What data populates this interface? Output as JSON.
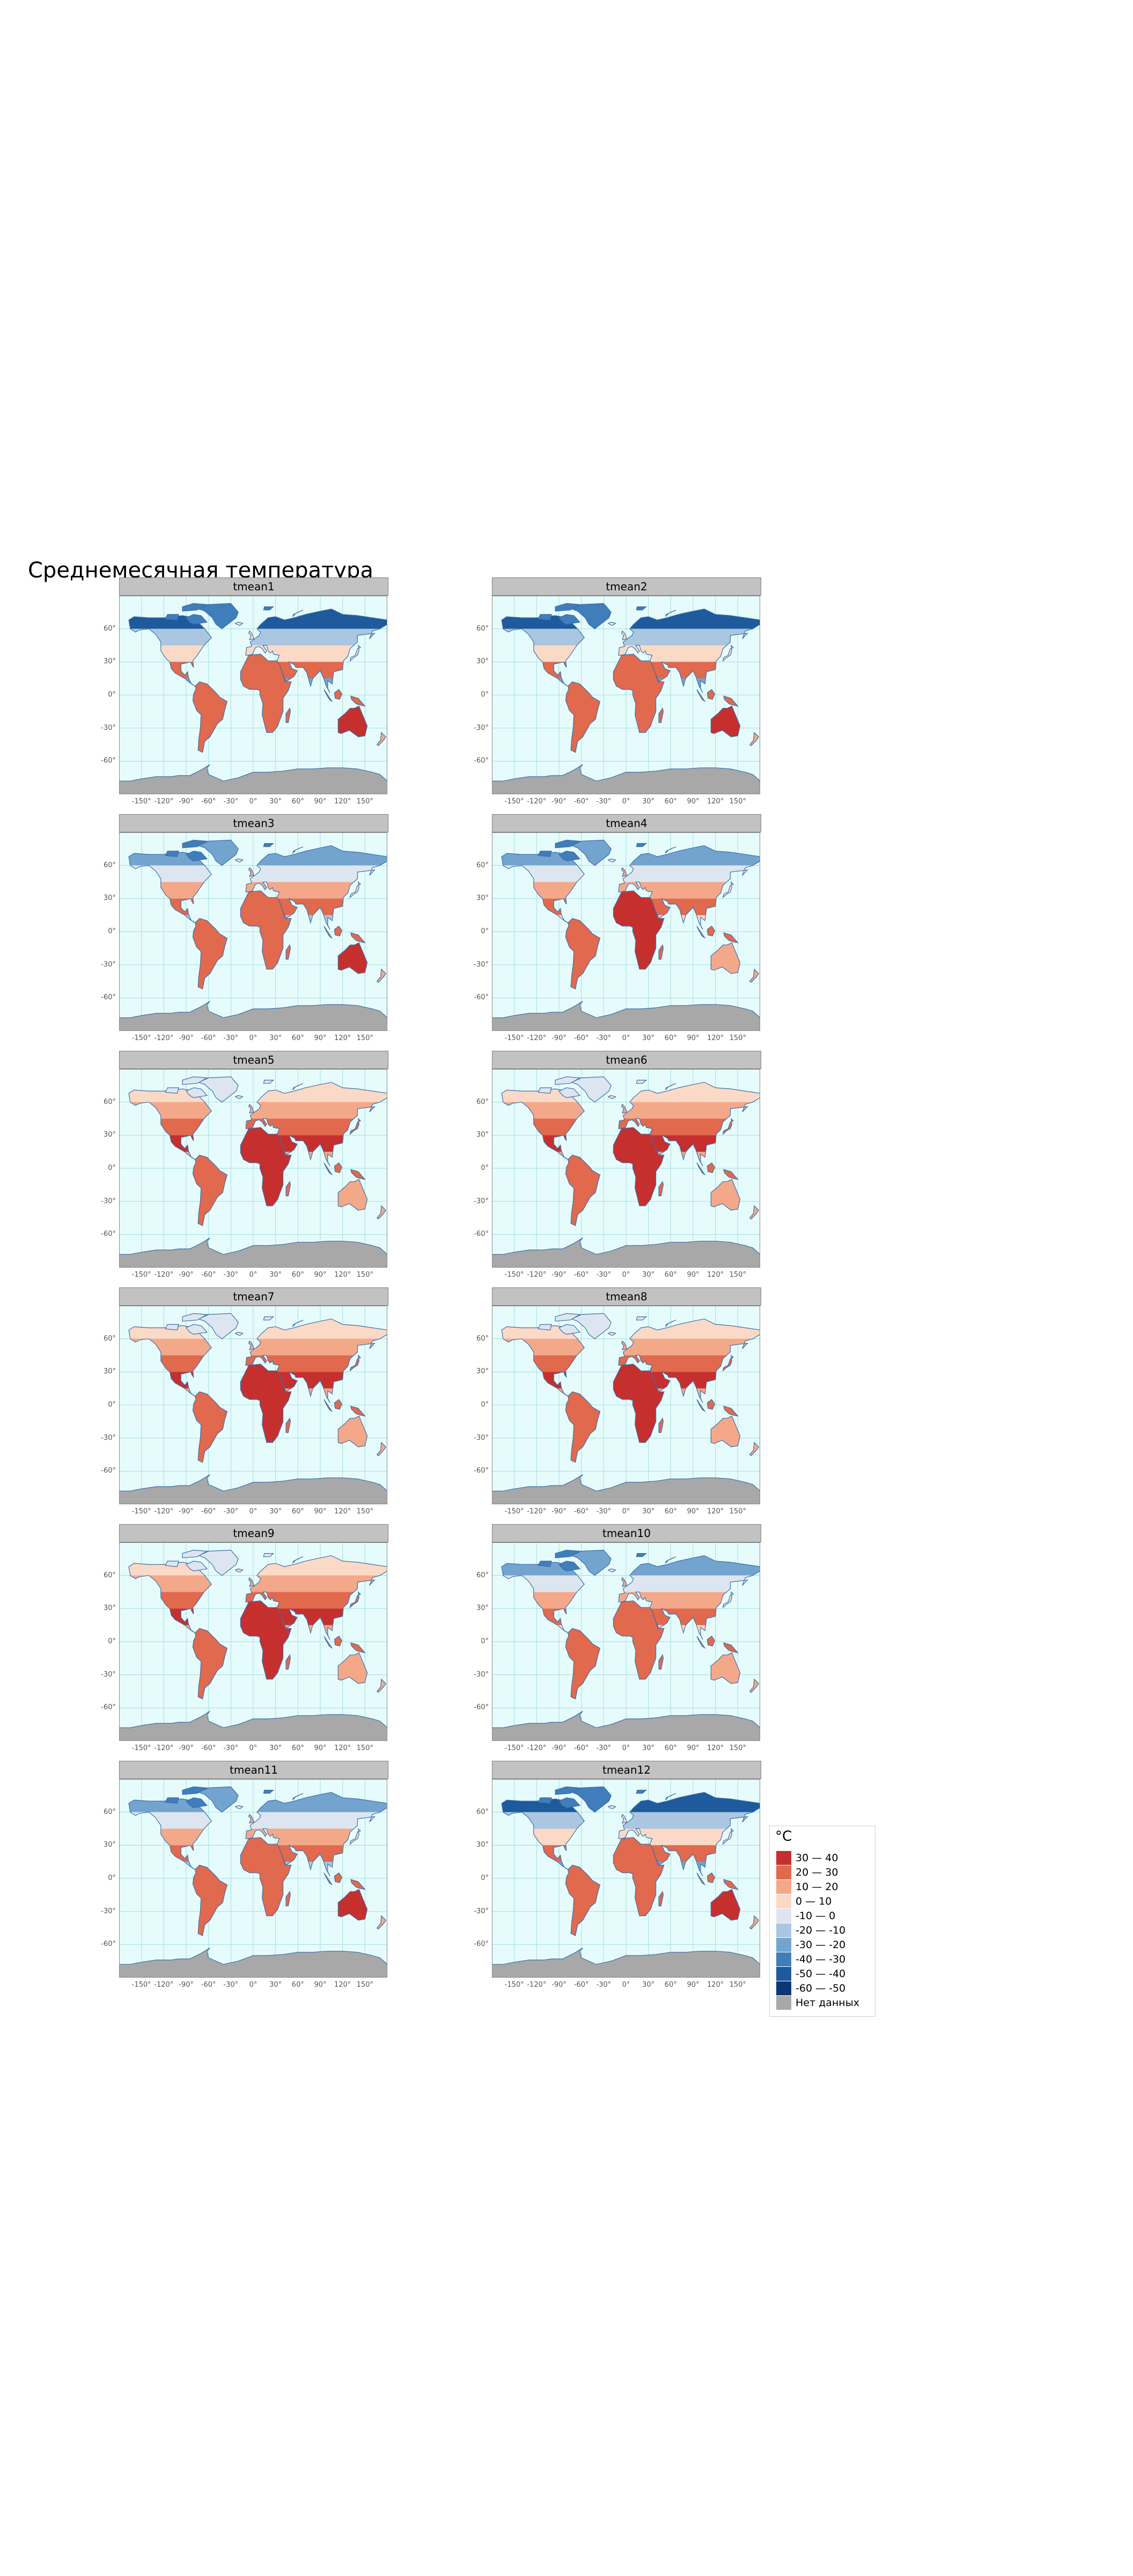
{
  "title": "Среднемесячная температура",
  "panels": [
    {
      "name": "tmean1",
      "month": 1
    },
    {
      "name": "tmean2",
      "month": 2
    },
    {
      "name": "tmean3",
      "month": 3
    },
    {
      "name": "tmean4",
      "month": 4
    },
    {
      "name": "tmean5",
      "month": 5
    },
    {
      "name": "tmean6",
      "month": 6
    },
    {
      "name": "tmean7",
      "month": 7
    },
    {
      "name": "tmean8",
      "month": 8
    },
    {
      "name": "tmean9",
      "month": 9
    },
    {
      "name": "tmean10",
      "month": 10
    },
    {
      "name": "tmean11",
      "month": 11
    },
    {
      "name": "tmean12",
      "month": 12
    }
  ],
  "latitude_labels": [
    "60°",
    "30°",
    "0°",
    "-30°",
    "-60°"
  ],
  "latitude_values": [
    60,
    30,
    0,
    -30,
    -60
  ],
  "longitude_labels": [
    "-150°",
    "-120°",
    "-90°",
    "-60°",
    "-30°",
    "0°",
    "30°",
    "60°",
    "90°",
    "120°",
    "150°"
  ],
  "longitude_values": [
    -150,
    -120,
    -90,
    -60,
    -30,
    0,
    30,
    60,
    90,
    120,
    150
  ],
  "legend": {
    "title": "°C",
    "classes": [
      {
        "label": "30 — 40",
        "color": "#c5302e"
      },
      {
        "label": "20 — 30",
        "color": "#e0694e"
      },
      {
        "label": "10 — 20",
        "color": "#f4a88a"
      },
      {
        "label": "0 — 10",
        "color": "#fbd9c7"
      },
      {
        "label": "-10 — 0",
        "color": "#dde6f0"
      },
      {
        "label": "-20 — -10",
        "color": "#aac6e0"
      },
      {
        "label": "-30 — -20",
        "color": "#73a4cf"
      },
      {
        "label": "-40 — -30",
        "color": "#3f7ebb"
      },
      {
        "label": "-50 — -40",
        "color": "#1e5a9c"
      },
      {
        "label": "-60 — -50",
        "color": "#0c3775"
      },
      {
        "label": "Нет данных",
        "color": "#a8a8a8"
      }
    ]
  },
  "colors": {
    "ocean": "#e6fcfc",
    "graticule": "#a5dcdc",
    "coastline": "#3c6eaa",
    "strip": "#c2c2c2"
  }
}
